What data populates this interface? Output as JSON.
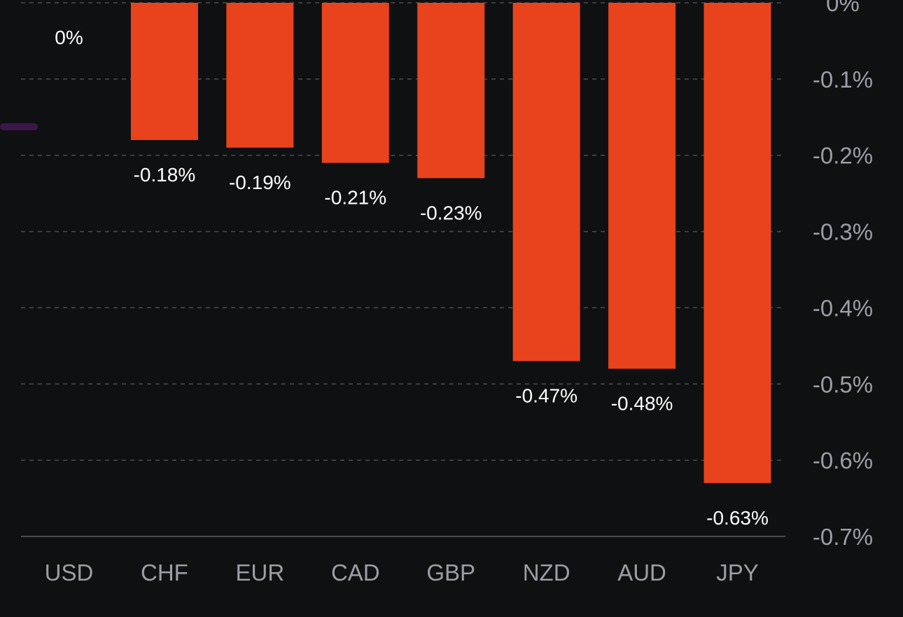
{
  "chart_data": {
    "type": "bar",
    "categories": [
      "USD",
      "CHF",
      "EUR",
      "CAD",
      "GBP",
      "NZD",
      "AUD",
      "JPY"
    ],
    "values": [
      0,
      -0.18,
      -0.19,
      -0.21,
      -0.23,
      -0.47,
      -0.48,
      -0.63
    ],
    "data_labels": [
      "0%",
      "-0.18%",
      "-0.19%",
      "-0.21%",
      "-0.23%",
      "-0.47%",
      "-0.48%",
      "-0.63%"
    ],
    "y_ticks": [
      0,
      -0.1,
      -0.2,
      -0.3,
      -0.4,
      -0.5,
      -0.6,
      -0.7
    ],
    "y_tick_labels": [
      "0%",
      "-0.1%",
      "-0.2%",
      "-0.3%",
      "-0.4%",
      "-0.5%",
      "-0.6%",
      "-0.7%"
    ],
    "ylim": [
      -0.7,
      0
    ],
    "y_axis_position": "right",
    "grid": true,
    "legend": "none",
    "title": "",
    "xlabel": "",
    "ylabel": ""
  },
  "colors": {
    "background": "#0f1012",
    "bar": "#e8431c",
    "grid": "#4a4c50",
    "axis_text": "#9b9ea4",
    "data_label": "#ffffff",
    "left_marker": "#3a1748"
  }
}
